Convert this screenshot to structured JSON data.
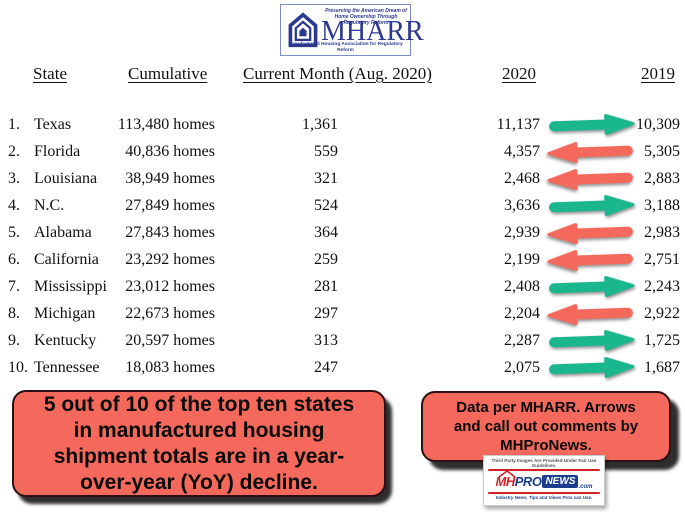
{
  "mharr_logo": {
    "tagline": "Preserving the American Dream of Home Ownership Through Regulatory Reform",
    "name": "MHARR",
    "subtitle": "Manufactured Housing Association for Regulatory Reform"
  },
  "table": {
    "headers": [
      "State",
      "Cumulative",
      "Current Month (Aug. 2020)",
      "2020",
      "2019"
    ],
    "rows": [
      {
        "rank": "1.",
        "state": "Texas",
        "cumulative": "113,480 homes",
        "current": "1,361",
        "y2020": "11,137",
        "trend": "up",
        "y2019": "10,309"
      },
      {
        "rank": "2.",
        "state": "Florida",
        "cumulative": "40,836 homes",
        "current": "559",
        "y2020": "4,357",
        "trend": "down",
        "y2019": "5,305"
      },
      {
        "rank": "3.",
        "state": "Louisiana",
        "cumulative": "38,949 homes",
        "current": "321",
        "y2020": "2,468",
        "trend": "down",
        "y2019": "2,883"
      },
      {
        "rank": "4.",
        "state": "N.C.",
        "cumulative": "27,849 homes",
        "current": "524",
        "y2020": "3,636",
        "trend": "up",
        "y2019": "3,188"
      },
      {
        "rank": "5.",
        "state": "Alabama",
        "cumulative": "27,843 homes",
        "current": "364",
        "y2020": "2,939",
        "trend": "down",
        "y2019": "2,983"
      },
      {
        "rank": "6.",
        "state": "California",
        "cumulative": "23,292 homes",
        "current": "259",
        "y2020": "2,199",
        "trend": "down",
        "y2019": "2,751"
      },
      {
        "rank": "7.",
        "state": "Mississippi",
        "cumulative": "23,012 homes",
        "current": "281",
        "y2020": "2,408",
        "trend": "up",
        "y2019": "2,243"
      },
      {
        "rank": "8.",
        "state": "Michigan",
        "cumulative": "22,673 homes",
        "current": "297",
        "y2020": "2,204",
        "trend": "down",
        "y2019": "2,922"
      },
      {
        "rank": "9.",
        "state": "Kentucky",
        "cumulative": "20,597 homes",
        "current": "313",
        "y2020": "2,287",
        "trend": "up",
        "y2019": "1,725"
      },
      {
        "rank": "10.",
        "state": "Tennessee",
        "cumulative": "18,083 homes",
        "current": "247",
        "y2020": "2,075",
        "trend": "up",
        "y2019": "1,687"
      }
    ]
  },
  "chart_data": {
    "type": "table",
    "title": "Top ten states in manufactured housing shipment totals (data per MHARR)",
    "columns": [
      "State",
      "Cumulative",
      "Current Month (Aug. 2020)",
      "2020",
      "2019",
      "YoY trend"
    ],
    "rows": [
      [
        "Texas",
        113480,
        1361,
        11137,
        10309,
        "up"
      ],
      [
        "Florida",
        40836,
        559,
        4357,
        5305,
        "down"
      ],
      [
        "Louisiana",
        38949,
        321,
        2468,
        2883,
        "down"
      ],
      [
        "N.C.",
        27849,
        524,
        3636,
        3188,
        "up"
      ],
      [
        "Alabama",
        27843,
        364,
        2939,
        2983,
        "down"
      ],
      [
        "California",
        23292,
        259,
        2199,
        2751,
        "down"
      ],
      [
        "Mississippi",
        23012,
        281,
        2408,
        2243,
        "up"
      ],
      [
        "Michigan",
        22673,
        297,
        2204,
        2922,
        "down"
      ],
      [
        "Kentucky",
        20597,
        313,
        2287,
        1725,
        "up"
      ],
      [
        "Tennessee",
        18083,
        247,
        2075,
        1687,
        "up"
      ]
    ],
    "annotations": [
      "5 out of 10 of the top ten states in manufactured housing shipment totals are in a year-over-year (YoY) decline.",
      "Data per MHARR. Arrows and call out comments by MHProNews."
    ]
  },
  "callouts": {
    "left": "5 out of 10 of the top ten states\nin manufactured housing\nshipment totals are in a year-\nover-year (YoY) decline.",
    "right": "Data per MHARR. Arrows\nand call out comments by\nMHProNews."
  },
  "mhpronews_logo": {
    "disclaimer": "Third Party Images Are Provided Under Fair Use Guidelines.",
    "brand_mh": "MH",
    "brand_pro": "PRO",
    "brand_news": "NEWS",
    "brand_tld": ".com",
    "tagline": "Industry News, Tips and Views Pros can Use."
  },
  "colors": {
    "arrow_up": "#1ab78f",
    "arrow_down": "#f4695c",
    "callout_bg": "#f4695c",
    "mharr_navy": "#2b3990",
    "mhpn_red": "#d22027",
    "mhpn_blue": "#1b3f8f"
  }
}
